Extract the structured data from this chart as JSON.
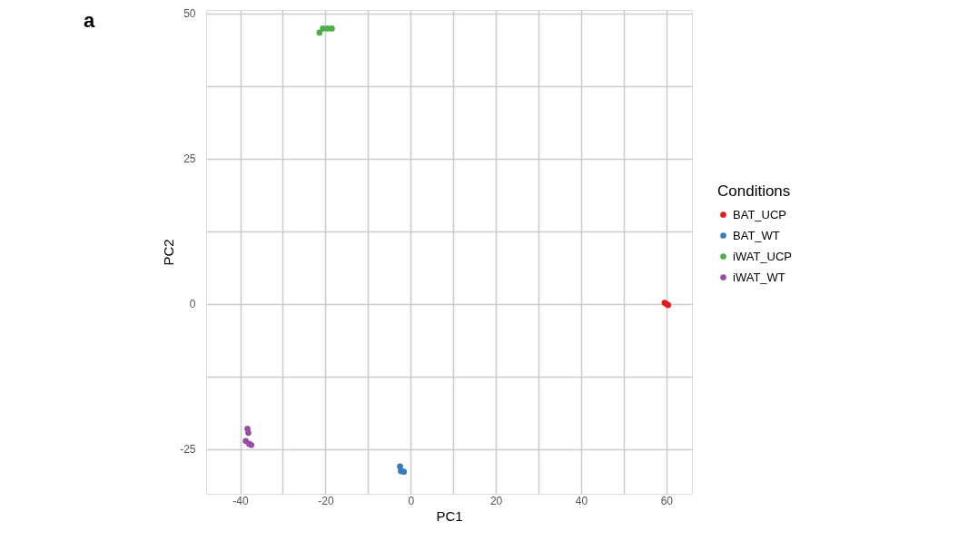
{
  "chart_data": {
    "type": "scatter",
    "xlabel": "PC1",
    "ylabel": "PC2",
    "legend_title": "Conditions",
    "annotations": [
      "a"
    ],
    "xlim": [
      -48,
      66
    ],
    "ylim": [
      -32.7,
      50.6
    ],
    "xticks": [
      -40,
      {
        "value": -30,
        "label": null
      },
      -20,
      {
        "value": -10,
        "label": null
      },
      0,
      {
        "value": 10,
        "label": null
      },
      20,
      {
        "value": 30,
        "label": null
      },
      40,
      {
        "value": 50,
        "label": null
      },
      60
    ],
    "yticks": [
      -25,
      {
        "value": -12.5,
        "label": null
      },
      0,
      {
        "value": 12.5,
        "label": null
      },
      25,
      {
        "value": 37.5,
        "label": null
      },
      50
    ],
    "grid": true,
    "legend": "right",
    "marker": "circle",
    "series": [
      {
        "name": "BAT_UCP",
        "color": "#e41a1c",
        "x": [
          60,
          60.4,
          59.6
        ],
        "values": [
          0,
          -0.2,
          0.2
        ]
      },
      {
        "name": "BAT_WT",
        "color": "#377eb8",
        "x": [
          -2.5,
          -2.3,
          -1.6
        ],
        "values": [
          -28.0,
          -28.8,
          -28.9
        ]
      },
      {
        "name": "iWAT_UCP",
        "color": "#4daf4a",
        "x": [
          -21.4,
          -20.6,
          -19.5,
          -18.5
        ],
        "values": [
          46.7,
          47.4,
          47.4,
          47.4
        ]
      },
      {
        "name": "iWAT_WT",
        "color": "#984ea3",
        "x": [
          -38.3,
          -38.1,
          -38.7,
          -37.9,
          -37.4
        ],
        "values": [
          -21.5,
          -22.2,
          -23.6,
          -24.1,
          -24.3
        ]
      }
    ]
  }
}
